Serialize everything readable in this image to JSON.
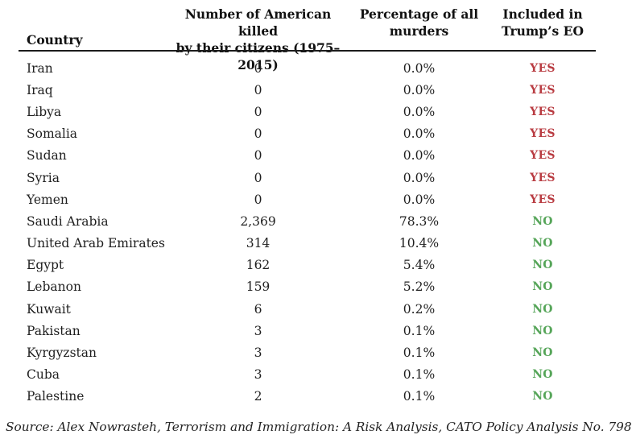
{
  "chart_data": {
    "type": "table",
    "headers": [
      {
        "line1": "Country",
        "line2": ""
      },
      {
        "line1": "Number of American killed",
        "line2": "by their citizens (1975–2015)"
      },
      {
        "line1": "Percentage of all",
        "line2": "murders"
      },
      {
        "line1": "Included in",
        "line2": "Trump’s EO"
      }
    ],
    "rows": [
      {
        "country": "Iran",
        "killed": "0",
        "pct": "0.0%",
        "eo": "YES"
      },
      {
        "country": "Iraq",
        "killed": "0",
        "pct": "0.0%",
        "eo": "YES"
      },
      {
        "country": "Libya",
        "killed": "0",
        "pct": "0.0%",
        "eo": "YES"
      },
      {
        "country": "Somalia",
        "killed": "0",
        "pct": "0.0%",
        "eo": "YES"
      },
      {
        "country": "Sudan",
        "killed": "0",
        "pct": "0.0%",
        "eo": "YES"
      },
      {
        "country": "Syria",
        "killed": "0",
        "pct": "0.0%",
        "eo": "YES"
      },
      {
        "country": "Yemen",
        "killed": "0",
        "pct": "0.0%",
        "eo": "YES"
      },
      {
        "country": "Saudi Arabia",
        "killed": "2,369",
        "pct": "78.3%",
        "eo": "NO"
      },
      {
        "country": "United Arab Emirates",
        "killed": "314",
        "pct": "10.4%",
        "eo": "NO"
      },
      {
        "country": "Egypt",
        "killed": "162",
        "pct": "5.4%",
        "eo": "NO"
      },
      {
        "country": "Lebanon",
        "killed": "159",
        "pct": "5.2%",
        "eo": "NO"
      },
      {
        "country": "Kuwait",
        "killed": "6",
        "pct": "0.2%",
        "eo": "NO"
      },
      {
        "country": "Pakistan",
        "killed": "3",
        "pct": "0.1%",
        "eo": "NO"
      },
      {
        "country": "Kyrgyzstan",
        "killed": "3",
        "pct": "0.1%",
        "eo": "NO"
      },
      {
        "country": "Cuba",
        "killed": "3",
        "pct": "0.1%",
        "eo": "NO"
      },
      {
        "country": "Palestine",
        "killed": "2",
        "pct": "0.1%",
        "eo": "NO"
      }
    ],
    "source": "Source: Alex Nowrasteh, Terrorism and Immigration: A Risk Analysis, CATO Policy Analysis No. 798",
    "colors": {
      "yes_red": "#b93c42",
      "no_green": "#56a559",
      "text": "#1f1f1f",
      "divider": "#1c1c1c"
    }
  }
}
